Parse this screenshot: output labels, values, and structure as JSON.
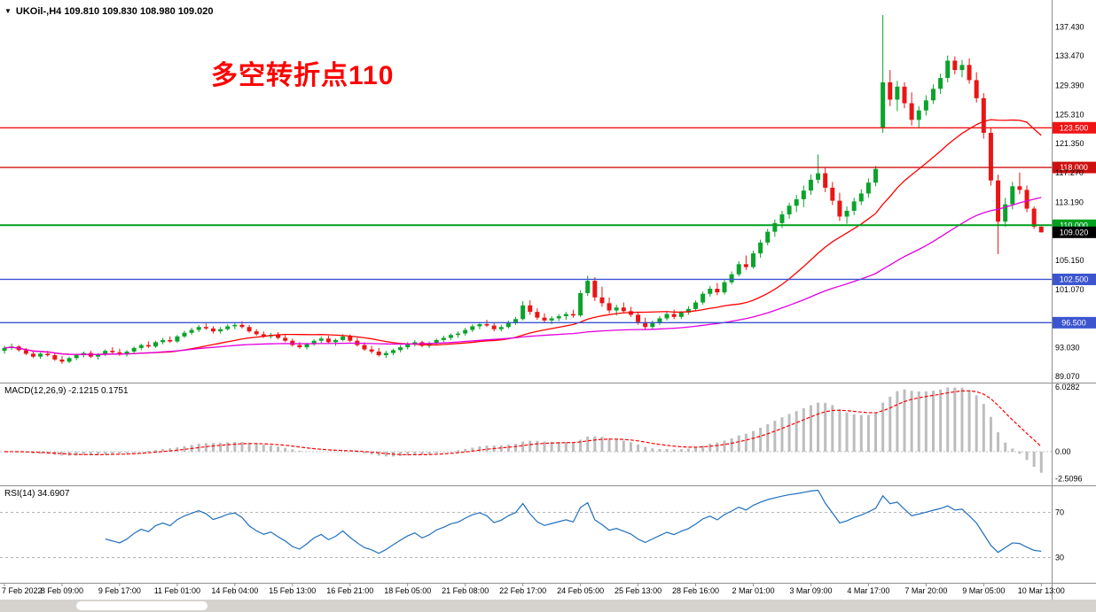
{
  "header": {
    "display": "UKOil-,H4 109.810 109.830 108.980 109.020",
    "symbol": "UKOil-",
    "timeframe": "H4"
  },
  "annotation": {
    "text": "多空转折点110",
    "color": "#ff0000"
  },
  "chart_data": {
    "type": "candlestick",
    "symbol": "UKOil-",
    "timeframe": "H4",
    "ohlc_display": {
      "open": "109.810",
      "high": "109.830",
      "low": "108.980",
      "close": "109.020"
    },
    "ylim_main": [
      88.2,
      141.2
    ],
    "price_axis_labels": [
      "137.430",
      "133.470",
      "129.390",
      "125.310",
      "121.350",
      "117.270",
      "113.190",
      "105.150",
      "101.070",
      "93.030",
      "89.070"
    ],
    "hlines": [
      {
        "price": 123.5,
        "label": "123.500",
        "color": "#f01414",
        "width": 1.4
      },
      {
        "price": 118.0,
        "label": "118.000",
        "color": "#cf1010",
        "width": 1.4
      },
      {
        "price": 110.0,
        "label": "110.000",
        "color": "#00a11e",
        "width": 2
      },
      {
        "price": 102.5,
        "label": "102.500",
        "color": "#3c55cf",
        "width": 1.4
      },
      {
        "price": 96.5,
        "label": "96.500",
        "color": "#3c55cf",
        "width": 1.4
      }
    ],
    "current_price": {
      "value": 109.02,
      "label": "109.020",
      "box_color": "#000000"
    },
    "ma": {
      "fast": {
        "period": 21,
        "color": "#ff0000"
      },
      "slow": {
        "period": 55,
        "color": "#e100e1"
      }
    },
    "macd": {
      "label": "MACD(12,26,9) -2.1215 0.1751",
      "params": [
        12,
        26,
        9
      ],
      "current": {
        "macd": -2.1215,
        "signal": 0.1751
      },
      "ylim": [
        -3.14,
        6.36
      ],
      "axis_labels": [
        {
          "value": 6.0282,
          "text": "6.0282"
        },
        {
          "value": 0,
          "text": "0.00"
        },
        {
          "value": -2.5096,
          "text": "-2.5096"
        }
      ]
    },
    "rsi": {
      "label": "RSI(14) 34.6907",
      "period": 14,
      "current": 34.6907,
      "levels": [
        70,
        30
      ],
      "ylim": [
        7.6,
        93.2
      ],
      "axis_labels": [
        {
          "value": 70,
          "text": "70"
        },
        {
          "value": 30,
          "text": "30"
        }
      ]
    },
    "colors": {
      "bull": "#0ba32b",
      "bear": "#ea1515",
      "macd_hist": "#bdbdbd",
      "macd_signal": "#ff0000",
      "rsi_line": "#1f6fbf",
      "separator": "#8f8f8f",
      "axis_text": "#000000"
    },
    "time_labels": [
      {
        "i": 0,
        "t": "7 Feb 2022"
      },
      {
        "i": 8,
        "t": "8 Feb 09:00"
      },
      {
        "i": 16,
        "t": "9 Feb 17:00"
      },
      {
        "i": 24,
        "t": "11 Feb 01:00"
      },
      {
        "i": 32,
        "t": "14 Feb 04:00"
      },
      {
        "i": 40,
        "t": "15 Feb 13:00"
      },
      {
        "i": 48,
        "t": "16 Feb 21:00"
      },
      {
        "i": 56,
        "t": "18 Feb 05:00"
      },
      {
        "i": 64,
        "t": "21 Feb 08:00"
      },
      {
        "i": 72,
        "t": "22 Feb 17:00"
      },
      {
        "i": 80,
        "t": "24 Feb 05:00"
      },
      {
        "i": 88,
        "t": "25 Feb 13:00"
      },
      {
        "i": 96,
        "t": "28 Feb 16:00"
      },
      {
        "i": 104,
        "t": "2 Mar 01:00"
      },
      {
        "i": 112,
        "t": "3 Mar 09:00"
      },
      {
        "i": 120,
        "t": "4 Mar 17:00"
      },
      {
        "i": 128,
        "t": "7 Mar 20:00"
      },
      {
        "i": 136,
        "t": "9 Mar 05:00"
      },
      {
        "i": 144,
        "t": "10 Mar 13:00"
      }
    ],
    "candles": [
      [
        92.6,
        93.3,
        92.2,
        93.0
      ],
      [
        93.0,
        93.6,
        92.7,
        93.2
      ],
      [
        93.2,
        93.4,
        92.5,
        92.7
      ],
      [
        92.7,
        93.0,
        92.0,
        92.2
      ],
      [
        92.2,
        92.5,
        91.6,
        91.8
      ],
      [
        91.8,
        92.4,
        91.5,
        92.2
      ],
      [
        92.2,
        92.6,
        91.8,
        92.0
      ],
      [
        92.0,
        92.3,
        91.2,
        91.4
      ],
      [
        91.4,
        91.9,
        90.8,
        91.1
      ],
      [
        91.1,
        91.8,
        90.9,
        91.6
      ],
      [
        91.6,
        92.2,
        91.3,
        92.0
      ],
      [
        92.0,
        92.5,
        91.7,
        92.3
      ],
      [
        92.3,
        92.6,
        91.6,
        91.8
      ],
      [
        91.8,
        92.3,
        91.4,
        92.1
      ],
      [
        92.1,
        92.8,
        91.9,
        92.6
      ],
      [
        92.6,
        93.1,
        92.2,
        92.4
      ],
      [
        92.4,
        92.9,
        91.9,
        92.2
      ],
      [
        92.2,
        92.7,
        91.8,
        92.5
      ],
      [
        92.5,
        93.2,
        92.3,
        93.0
      ],
      [
        93.0,
        93.6,
        92.7,
        93.4
      ],
      [
        93.4,
        93.9,
        93.0,
        93.2
      ],
      [
        93.2,
        94.0,
        93.0,
        93.8
      ],
      [
        93.8,
        94.4,
        93.5,
        94.1
      ],
      [
        94.1,
        94.6,
        93.7,
        93.9
      ],
      [
        93.9,
        94.8,
        93.7,
        94.6
      ],
      [
        94.6,
        95.4,
        94.4,
        95.1
      ],
      [
        95.1,
        95.8,
        94.8,
        95.5
      ],
      [
        95.5,
        96.2,
        95.2,
        95.9
      ],
      [
        95.9,
        96.4,
        95.5,
        95.7
      ],
      [
        95.7,
        96.0,
        95.0,
        95.3
      ],
      [
        95.3,
        95.9,
        95.0,
        95.6
      ],
      [
        95.6,
        96.3,
        95.4,
        96.0
      ],
      [
        96.0,
        96.6,
        95.6,
        96.2
      ],
      [
        96.2,
        96.7,
        95.7,
        95.9
      ],
      [
        95.9,
        96.2,
        95.1,
        95.3
      ],
      [
        95.3,
        95.6,
        94.7,
        94.9
      ],
      [
        94.9,
        95.3,
        94.4,
        94.6
      ],
      [
        94.6,
        95.1,
        94.3,
        94.8
      ],
      [
        94.8,
        95.2,
        94.2,
        94.4
      ],
      [
        94.4,
        94.8,
        93.8,
        94.0
      ],
      [
        94.0,
        94.3,
        93.2,
        93.4
      ],
      [
        93.4,
        93.8,
        92.9,
        93.1
      ],
      [
        93.1,
        93.7,
        92.8,
        93.5
      ],
      [
        93.5,
        94.2,
        93.3,
        94.0
      ],
      [
        94.0,
        94.6,
        93.7,
        94.3
      ],
      [
        94.3,
        94.7,
        93.6,
        93.8
      ],
      [
        93.8,
        94.3,
        93.3,
        94.1
      ],
      [
        94.1,
        94.9,
        93.9,
        94.6
      ],
      [
        94.6,
        94.9,
        93.8,
        94.0
      ],
      [
        94.0,
        94.4,
        93.2,
        93.4
      ],
      [
        93.4,
        93.8,
        92.6,
        92.8
      ],
      [
        92.8,
        93.3,
        92.2,
        92.5
      ],
      [
        92.5,
        93.0,
        91.8,
        92.0
      ],
      [
        92.0,
        92.6,
        91.6,
        92.3
      ],
      [
        92.3,
        92.9,
        92.0,
        92.7
      ],
      [
        92.7,
        93.4,
        92.4,
        93.1
      ],
      [
        93.1,
        93.8,
        92.8,
        93.5
      ],
      [
        93.5,
        94.1,
        93.2,
        93.8
      ],
      [
        93.8,
        94.0,
        93.1,
        93.3
      ],
      [
        93.3,
        93.9,
        93.0,
        93.6
      ],
      [
        93.6,
        94.3,
        93.4,
        94.1
      ],
      [
        94.1,
        94.7,
        93.8,
        94.4
      ],
      [
        94.4,
        95.0,
        94.1,
        94.8
      ],
      [
        94.8,
        95.3,
        94.4,
        95.0
      ],
      [
        95.0,
        95.8,
        94.7,
        95.5
      ],
      [
        95.5,
        96.3,
        95.2,
        96.0
      ],
      [
        96.0,
        96.6,
        95.6,
        96.3
      ],
      [
        96.3,
        96.9,
        95.9,
        96.1
      ],
      [
        96.1,
        96.5,
        95.3,
        95.6
      ],
      [
        95.6,
        96.2,
        95.3,
        95.9
      ],
      [
        95.9,
        96.8,
        95.7,
        96.5
      ],
      [
        96.5,
        97.3,
        96.2,
        97.0
      ],
      [
        97.0,
        99.5,
        96.8,
        98.9
      ],
      [
        98.9,
        99.6,
        97.6,
        98.0
      ],
      [
        98.0,
        98.5,
        96.9,
        97.2
      ],
      [
        97.2,
        97.8,
        96.5,
        96.8
      ],
      [
        96.8,
        97.4,
        96.3,
        97.1
      ],
      [
        97.1,
        97.7,
        96.7,
        97.4
      ],
      [
        97.4,
        98.0,
        96.9,
        97.7
      ],
      [
        97.7,
        98.3,
        97.2,
        97.5
      ],
      [
        97.5,
        101.0,
        97.3,
        100.6
      ],
      [
        100.6,
        103.0,
        100.2,
        102.3
      ],
      [
        102.3,
        102.8,
        99.5,
        100.0
      ],
      [
        100.0,
        101.5,
        98.7,
        99.2
      ],
      [
        99.2,
        100.0,
        97.8,
        98.2
      ],
      [
        98.2,
        99.0,
        97.5,
        98.6
      ],
      [
        98.6,
        99.3,
        97.9,
        98.1
      ],
      [
        98.1,
        98.7,
        97.3,
        97.6
      ],
      [
        97.6,
        98.0,
        96.2,
        96.6
      ],
      [
        96.6,
        97.2,
        95.6,
        95.9
      ],
      [
        95.9,
        96.8,
        95.5,
        96.5
      ],
      [
        96.5,
        97.4,
        96.2,
        97.1
      ],
      [
        97.1,
        98.0,
        96.8,
        97.7
      ],
      [
        97.7,
        98.3,
        97.0,
        97.3
      ],
      [
        97.3,
        98.1,
        97.0,
        97.9
      ],
      [
        97.9,
        98.8,
        97.6,
        98.4
      ],
      [
        98.4,
        99.6,
        98.1,
        99.3
      ],
      [
        99.3,
        100.8,
        99.0,
        100.5
      ],
      [
        100.5,
        101.6,
        100.1,
        101.2
      ],
      [
        101.2,
        102.0,
        100.3,
        100.7
      ],
      [
        100.7,
        102.4,
        100.4,
        102.1
      ],
      [
        102.1,
        103.6,
        101.8,
        103.2
      ],
      [
        103.2,
        105.0,
        102.9,
        104.6
      ],
      [
        104.6,
        105.8,
        103.8,
        104.2
      ],
      [
        104.2,
        106.5,
        104.0,
        106.1
      ],
      [
        106.1,
        108.0,
        105.5,
        107.6
      ],
      [
        107.6,
        109.5,
        107.2,
        109.1
      ],
      [
        109.1,
        110.8,
        108.4,
        110.3
      ],
      [
        110.3,
        112.0,
        109.6,
        111.5
      ],
      [
        111.5,
        113.1,
        110.9,
        112.7
      ],
      [
        112.7,
        114.2,
        111.8,
        113.6
      ],
      [
        113.6,
        115.5,
        112.5,
        114.8
      ],
      [
        114.8,
        117.0,
        114.2,
        116.3
      ],
      [
        116.3,
        119.8,
        115.8,
        117.2
      ],
      [
        117.2,
        118.0,
        114.6,
        115.2
      ],
      [
        115.2,
        116.0,
        112.8,
        113.4
      ],
      [
        113.4,
        114.5,
        110.6,
        111.2
      ],
      [
        111.2,
        112.6,
        110.2,
        112.0
      ],
      [
        112.0,
        113.8,
        111.4,
        113.3
      ],
      [
        113.3,
        115.0,
        112.8,
        114.4
      ],
      [
        114.4,
        116.5,
        113.8,
        115.9
      ],
      [
        115.9,
        118.2,
        115.4,
        117.8
      ],
      [
        123.5,
        139.1,
        122.8,
        129.8
      ],
      [
        129.8,
        131.5,
        126.5,
        127.4
      ],
      [
        127.4,
        130.0,
        125.8,
        129.2
      ],
      [
        129.2,
        129.8,
        126.2,
        126.9
      ],
      [
        126.9,
        128.4,
        123.8,
        124.6
      ],
      [
        124.6,
        126.5,
        123.4,
        125.9
      ],
      [
        125.9,
        128.0,
        125.2,
        127.3
      ],
      [
        127.3,
        129.5,
        126.8,
        128.9
      ],
      [
        128.9,
        131.0,
        128.2,
        130.4
      ],
      [
        130.4,
        133.5,
        129.8,
        132.8
      ],
      [
        132.8,
        133.4,
        130.9,
        131.5
      ],
      [
        131.5,
        132.9,
        130.5,
        132.2
      ],
      [
        132.2,
        133.1,
        129.6,
        130.1
      ],
      [
        130.1,
        131.2,
        127.0,
        127.6
      ],
      [
        127.6,
        128.3,
        122.0,
        122.8
      ],
      [
        122.8,
        123.5,
        115.5,
        116.2
      ],
      [
        116.2,
        117.0,
        106.0,
        110.5
      ],
      [
        110.5,
        113.8,
        109.8,
        112.9
      ],
      [
        112.9,
        116.0,
        112.2,
        115.4
      ],
      [
        115.4,
        117.3,
        114.3,
        114.9
      ],
      [
        114.9,
        115.5,
        111.8,
        112.3
      ],
      [
        112.3,
        112.6,
        109.5,
        109.8
      ],
      [
        109.81,
        109.83,
        108.98,
        109.02
      ]
    ]
  }
}
